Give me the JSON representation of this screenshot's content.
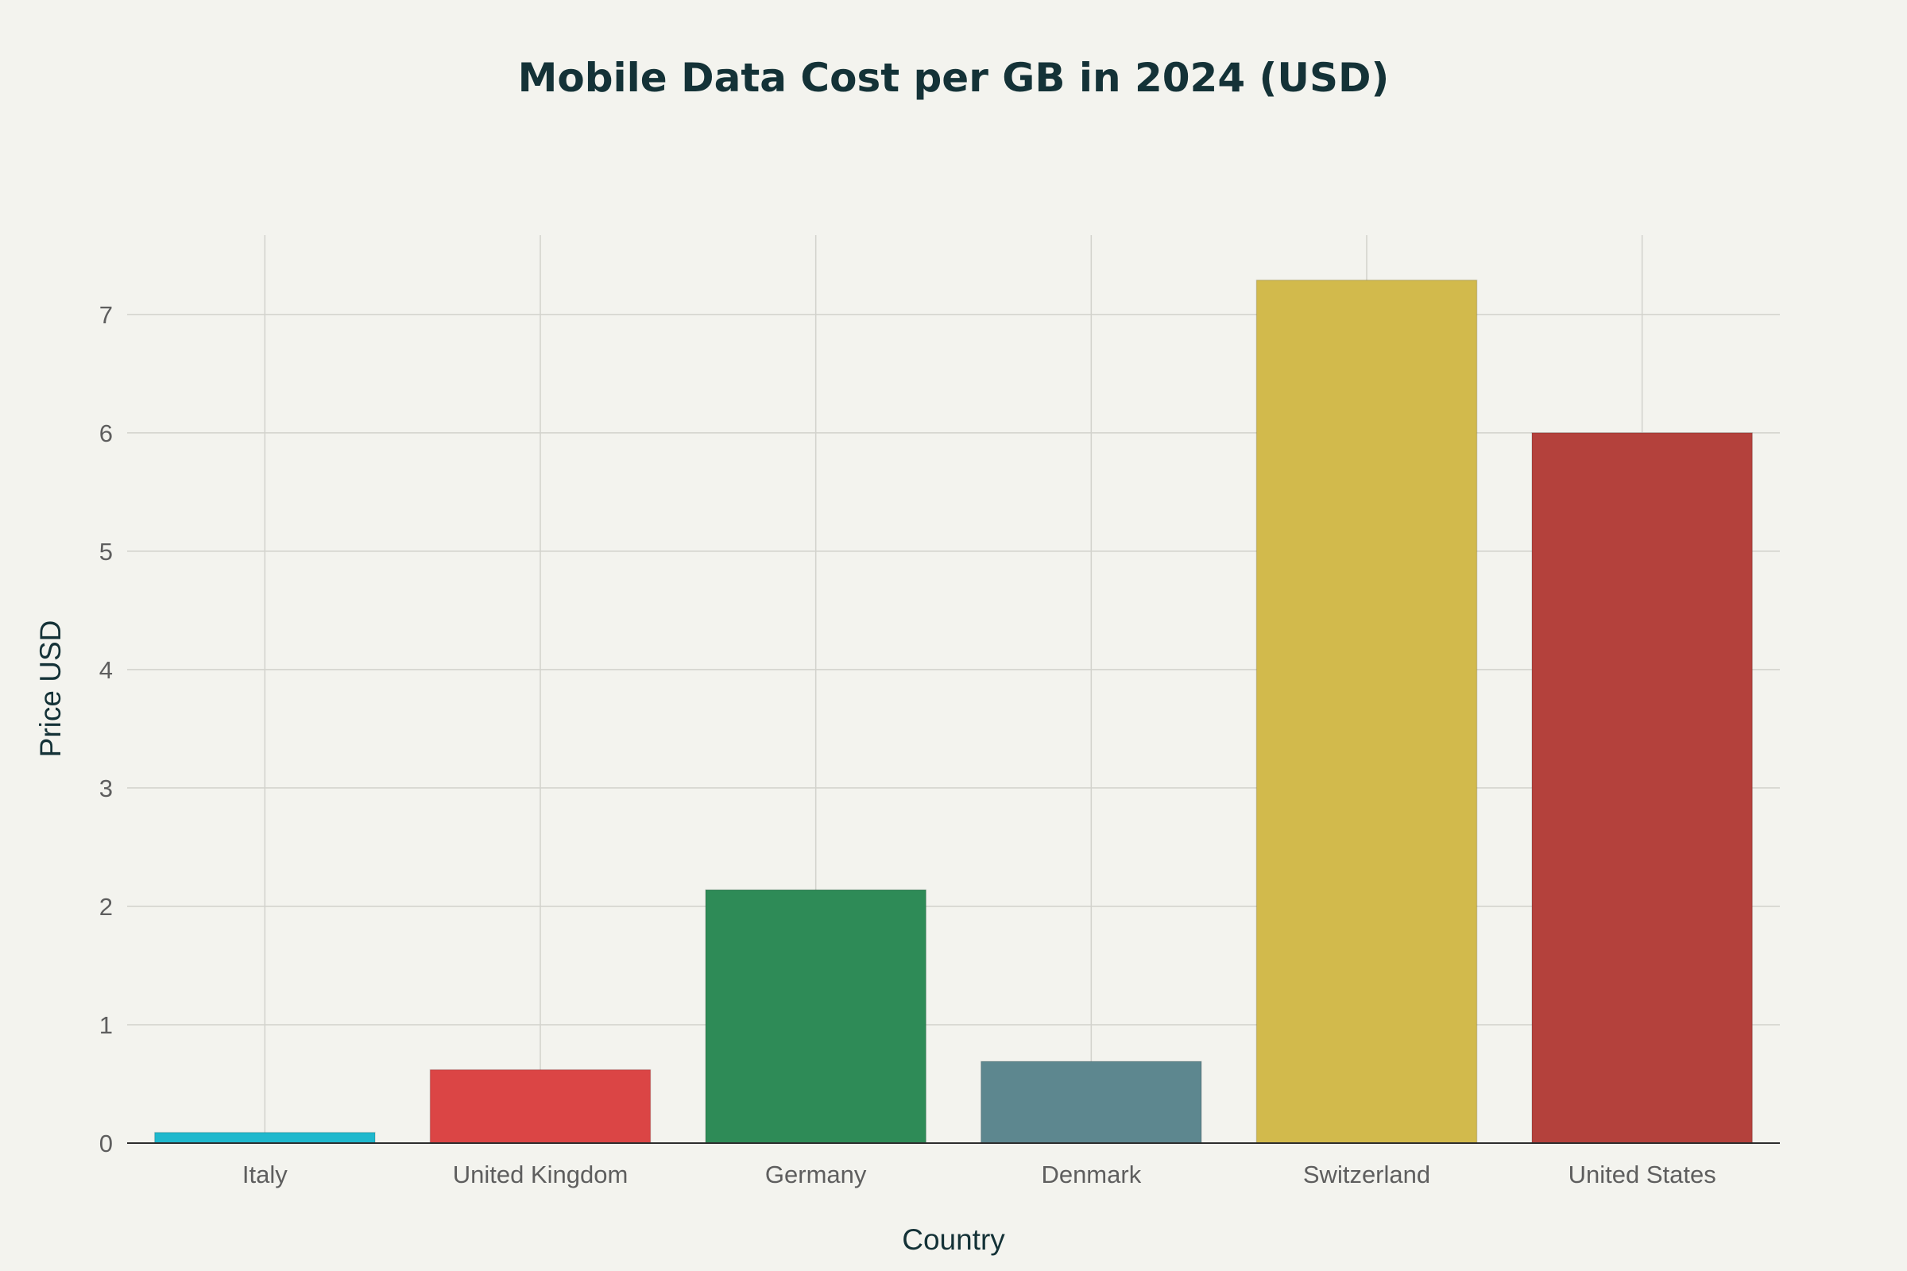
{
  "chart_data": {
    "type": "bar",
    "title": "Mobile Data Cost per GB in 2024 (USD)",
    "xlabel": "Country",
    "ylabel": "Price USD",
    "categories": [
      "Italy",
      "United Kingdom",
      "Germany",
      "Denmark",
      "Switzerland",
      "United States"
    ],
    "values": [
      0.09,
      0.62,
      2.14,
      0.69,
      7.29,
      6.0
    ],
    "colors": [
      "#1fb8cd",
      "#db4545",
      "#2e8b57",
      "#5d878f",
      "#d2ba4c",
      "#b4413c"
    ],
    "ylim": [
      0,
      7.67
    ],
    "yticks": [
      0,
      1,
      2,
      3,
      4,
      5,
      6,
      7
    ],
    "grid": true,
    "legend": "none"
  }
}
